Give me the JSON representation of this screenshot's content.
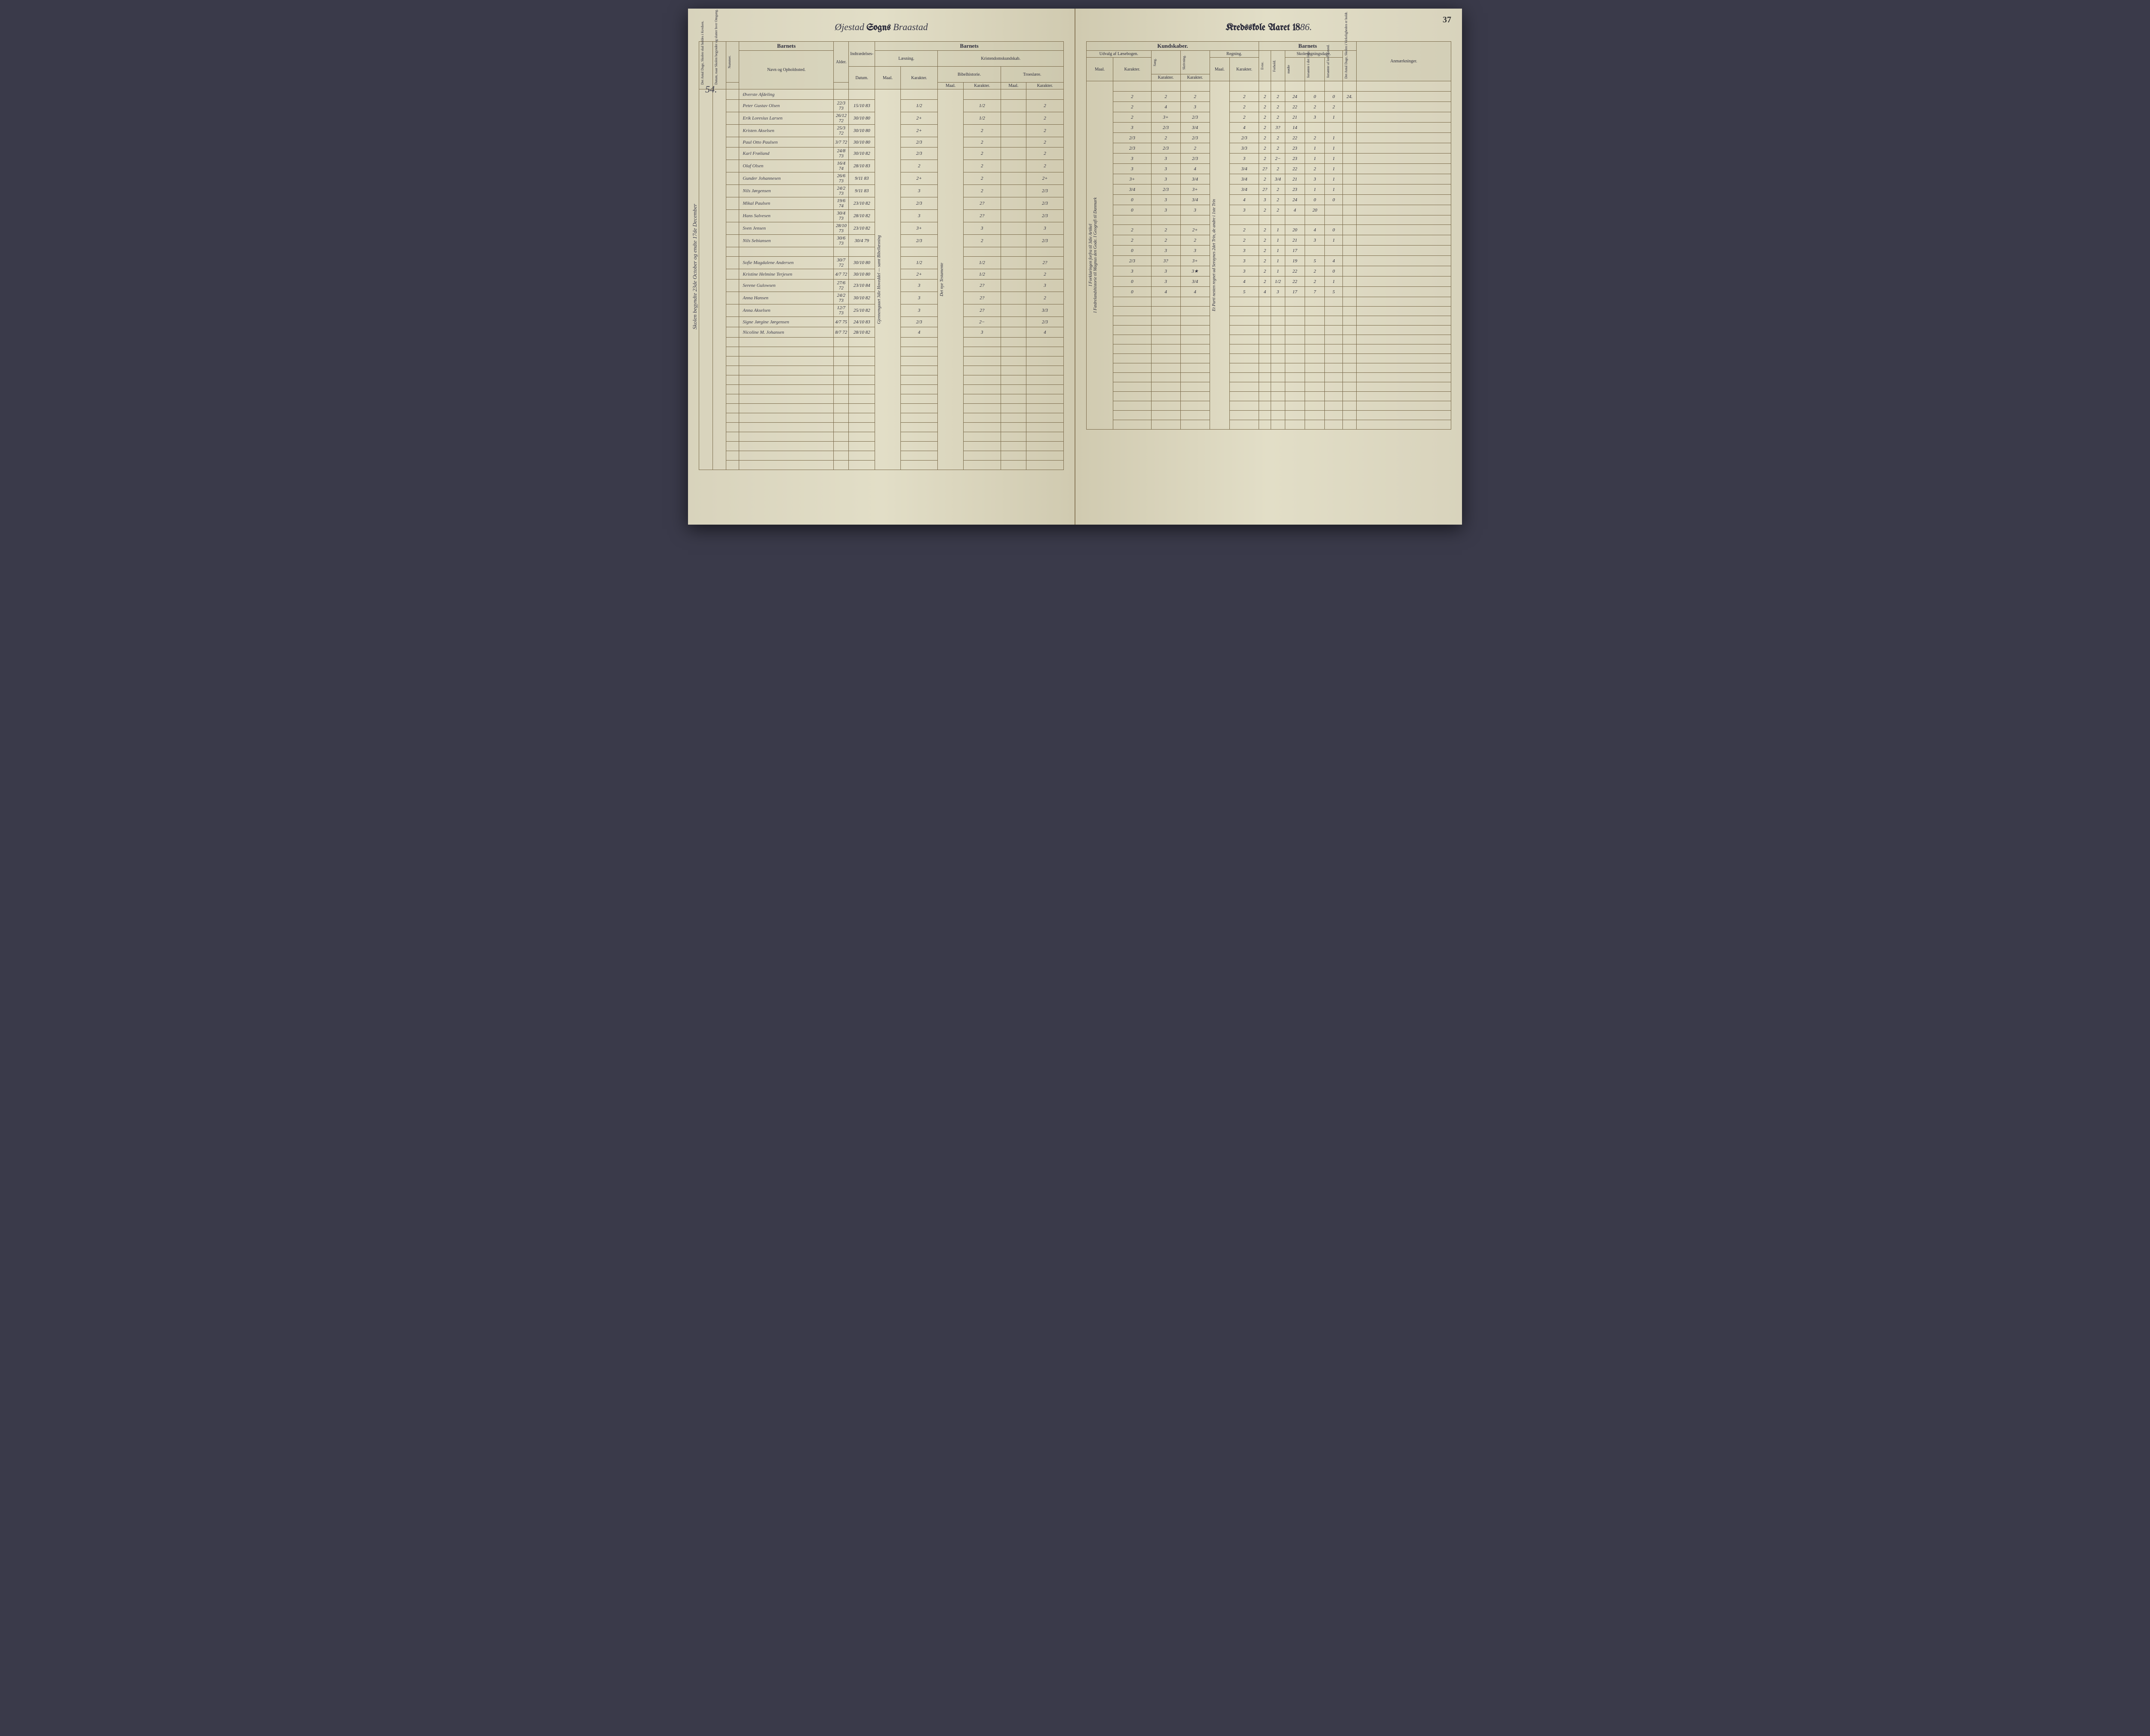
{
  "pageNumber": "37",
  "header": {
    "sogn_script": "Øjestad",
    "sogns": "Sogns",
    "kreds_script": "Braastad",
    "kredsskole": "Kredsskole Aaret 18",
    "year": "86."
  },
  "marginNote": "Skolen begyndte 23de October og endte 17de December",
  "rowNumber": "54.",
  "sectionTitle": "Øverste Afdeling",
  "columnGroups": {
    "left": {
      "barnets": "Barnets",
      "antal_dage": "Det Antal Dage, Skolen skal holdes i Kredsen.",
      "datum": "Datum, naar Skolen begynder og slutter hver Omgang.",
      "nummer": "Nummer.",
      "navn": "Navn og Opholdssted.",
      "alder": "Alder.",
      "indtrae": "Indtrædelses-",
      "indtrae_datum": "Datum.",
      "barnets2": "Barnets",
      "laesning": "Læsning.",
      "kristendom": "Kristendomskundskab.",
      "bibel": "Bibelhistorie.",
      "troes": "Troeslære.",
      "maal": "Maal.",
      "karakter": "Karakter."
    },
    "right": {
      "kundskaber": "Kundskaber.",
      "udvalg": "Udvalg af Læsebogen.",
      "sang": "Sang.",
      "skriv": "Skrivning.",
      "regning": "Regning.",
      "barnets3": "Barnets",
      "evne": "Evne.",
      "forhold": "Forhold.",
      "skolesog": "Skolesøgningsdage.",
      "modte": "mødte",
      "forsomt_hele": "forsømte i det Hele.",
      "forsomt_lov": "forsømte af lovl. Grund.",
      "antal_virk": "Det Antal Dage, Skolen i Virkeligheden er holdt.",
      "anmaerk": "Anmærkninger.",
      "maal": "Maal.",
      "karakter": "Karakter."
    }
  },
  "verticalNotes": {
    "col_bibel": "Gjennemgaaet 3die Hoveddel — samt Bibellæsning",
    "col_troes": "Det nye Testamente",
    "col_udvalg1": "I Forklaringen forfra til 3die Artikel",
    "col_udvalg2": "I Fædrelandshistorie til Magnus den Gode. I Geografi til Danmark",
    "col_regning": "Et Parti nesten regnet ud Seraynes 2det Trin, de andre i 1ste Trin"
  },
  "students": [
    {
      "name": "Peter Gustav Olsen",
      "alder": "22/3 73",
      "ind": "15/10 83",
      "l_m": "",
      "l_k": "1/2",
      "b_m": "",
      "b_k": "1/2",
      "t_m": "",
      "t_k": "2",
      "u_m": "",
      "u_k": "2",
      "sa": "2",
      "sk": "2",
      "r_m": "",
      "r_k": "2",
      "ev": "2",
      "fo": "2",
      "mo": "24",
      "fh": "0",
      "fl": "0",
      "ad": "24."
    },
    {
      "name": "Erik Loresius Larsen",
      "alder": "26/12 72",
      "ind": "30/10 80",
      "l_m": "",
      "l_k": "2+",
      "b_m": "",
      "b_k": "1/2",
      "t_m": "",
      "t_k": "2",
      "u_m": "",
      "u_k": "2",
      "sa": "4",
      "sk": "3",
      "r_m": "",
      "r_k": "2",
      "ev": "2",
      "fo": "2",
      "mo": "22",
      "fh": "2",
      "fl": "2",
      "ad": ""
    },
    {
      "name": "Kristen Akselsen",
      "alder": "25/3 72",
      "ind": "30/10 80",
      "l_m": "",
      "l_k": "2+",
      "b_m": "",
      "b_k": "2",
      "t_m": "",
      "t_k": "2",
      "u_m": "",
      "u_k": "2",
      "sa": "3+",
      "sk": "2/3",
      "r_m": "",
      "r_k": "2",
      "ev": "2",
      "fo": "2",
      "mo": "21",
      "fh": "3",
      "fl": "1",
      "ad": ""
    },
    {
      "name": "Paul Otto Paulsen",
      "alder": "3/7 72",
      "ind": "30/10 80",
      "l_m": "",
      "l_k": "2/3",
      "b_m": "",
      "b_k": "2",
      "t_m": "",
      "t_k": "2",
      "u_m": "",
      "u_k": "3",
      "sa": "2/3",
      "sk": "3/4",
      "r_m": "",
      "r_k": "4",
      "ev": "2",
      "fo": "3?",
      "mo": "14",
      "fh": "",
      "fl": "",
      "ad": ""
    },
    {
      "name": "Karl Frøiland",
      "alder": "24/8 73",
      "ind": "30/10 82",
      "l_m": "",
      "l_k": "2/3",
      "b_m": "",
      "b_k": "2",
      "t_m": "",
      "t_k": "2",
      "u_m": "",
      "u_k": "2/3",
      "sa": "2",
      "sk": "2/3",
      "r_m": "",
      "r_k": "2/3",
      "ev": "2",
      "fo": "2",
      "mo": "22",
      "fh": "2",
      "fl": "1",
      "ad": ""
    },
    {
      "name": "Olaf Olsen",
      "alder": "16/4 74",
      "ind": "28/10 83",
      "l_m": "",
      "l_k": "2",
      "b_m": "",
      "b_k": "2",
      "t_m": "",
      "t_k": "2",
      "u_m": "",
      "u_k": "2/3",
      "sa": "2/3",
      "sk": "2",
      "r_m": "",
      "r_k": "3/3",
      "ev": "2",
      "fo": "2",
      "mo": "23",
      "fh": "1",
      "fl": "1",
      "ad": ""
    },
    {
      "name": "Gunder Johannesen",
      "alder": "26/6 73",
      "ind": "9/11 83",
      "l_m": "",
      "l_k": "2+",
      "b_m": "",
      "b_k": "2",
      "t_m": "",
      "t_k": "2+",
      "u_m": "",
      "u_k": "3",
      "sa": "3",
      "sk": "2/3",
      "r_m": "",
      "r_k": "3",
      "ev": "2",
      "fo": "2−",
      "mo": "23",
      "fh": "1",
      "fl": "1",
      "ad": ""
    },
    {
      "name": "Nils Jørgensen",
      "alder": "24/2 73",
      "ind": "9/11 83",
      "l_m": "",
      "l_k": "3",
      "b_m": "",
      "b_k": "2",
      "t_m": "",
      "t_k": "2/3",
      "u_m": "",
      "u_k": "3",
      "sa": "3",
      "sk": "4",
      "r_m": "",
      "r_k": "3/4",
      "ev": "2?",
      "fo": "2",
      "mo": "22",
      "fh": "2",
      "fl": "1",
      "ad": ""
    },
    {
      "name": "Mikal Paulsen",
      "alder": "19/6 74",
      "ind": "23/10 82",
      "l_m": "",
      "l_k": "2/3",
      "b_m": "",
      "b_k": "2?",
      "t_m": "",
      "t_k": "2/3",
      "u_m": "",
      "u_k": "3+",
      "sa": "3",
      "sk": "3/4",
      "r_m": "",
      "r_k": "3/4",
      "ev": "2",
      "fo": "3/4",
      "mo": "21",
      "fh": "3",
      "fl": "1",
      "ad": ""
    },
    {
      "name": "Hans Salvesen",
      "alder": "30/4 73",
      "ind": "28/10 82",
      "l_m": "",
      "l_k": "3",
      "b_m": "",
      "b_k": "2?",
      "t_m": "",
      "t_k": "2/3",
      "u_m": "",
      "u_k": "3/4",
      "sa": "2/3",
      "sk": "3+",
      "r_m": "",
      "r_k": "3/4",
      "ev": "2?",
      "fo": "2",
      "mo": "23",
      "fh": "1",
      "fl": "1",
      "ad": ""
    },
    {
      "name": "Sven Jensen",
      "alder": "28/10 73",
      "ind": "23/10 82",
      "l_m": "",
      "l_k": "3+",
      "b_m": "",
      "b_k": "3",
      "t_m": "",
      "t_k": "3",
      "u_m": "",
      "u_k": "0",
      "sa": "3",
      "sk": "3/4",
      "r_m": "",
      "r_k": "4",
      "ev": "3",
      "fo": "2",
      "mo": "24",
      "fh": "0",
      "fl": "0",
      "ad": ""
    },
    {
      "name": "Nils Sebiansen",
      "alder": "30/6 73",
      "ind": "30/4 79",
      "l_m": "",
      "l_k": "2/3",
      "b_m": "",
      "b_k": "2",
      "t_m": "",
      "t_k": "2/3",
      "u_m": "",
      "u_k": "0",
      "sa": "3",
      "sk": "3",
      "r_m": "",
      "r_k": "3",
      "ev": "2",
      "fo": "2",
      "mo": "4",
      "fh": "20",
      "fl": "",
      "ad": ""
    },
    null,
    {
      "name": "Sofie Magdalene Andersen",
      "alder": "30/7 72",
      "ind": "30/10 80",
      "l_m": "",
      "l_k": "1/2",
      "b_m": "",
      "b_k": "1/2",
      "t_m": "",
      "t_k": "2?",
      "u_m": "",
      "u_k": "2",
      "sa": "2",
      "sk": "2+",
      "r_m": "",
      "r_k": "2",
      "ev": "2",
      "fo": "1",
      "mo": "20",
      "fh": "4",
      "fl": "0",
      "ad": ""
    },
    {
      "name": "Kristine Helmine Terjesen",
      "alder": "4/7 72",
      "ind": "30/10 80",
      "l_m": "",
      "l_k": "2+",
      "b_m": "",
      "b_k": "1/2",
      "t_m": "",
      "t_k": "2",
      "u_m": "",
      "u_k": "2",
      "sa": "2",
      "sk": "2",
      "r_m": "",
      "r_k": "2",
      "ev": "2",
      "fo": "1",
      "mo": "21",
      "fh": "3",
      "fl": "1",
      "ad": ""
    },
    {
      "name": "Serene Gulowsen",
      "alder": "27/6 72",
      "ind": "23/10 84",
      "l_m": "",
      "l_k": "3",
      "b_m": "",
      "b_k": "2?",
      "t_m": "",
      "t_k": "3",
      "u_m": "",
      "u_k": "0",
      "sa": "3",
      "sk": "3",
      "r_m": "",
      "r_k": "3",
      "ev": "2",
      "fo": "1",
      "mo": "17",
      "fh": "",
      "fl": "",
      "ad": ""
    },
    {
      "name": "Anna Hansen",
      "alder": "24/2 73",
      "ind": "30/10 82",
      "l_m": "",
      "l_k": "3",
      "b_m": "",
      "b_k": "2?",
      "t_m": "",
      "t_k": "2",
      "u_m": "",
      "u_k": "2/3",
      "sa": "3?",
      "sk": "3+",
      "r_m": "",
      "r_k": "3",
      "ev": "2",
      "fo": "1",
      "mo": "19",
      "fh": "5",
      "fl": "4",
      "ad": ""
    },
    {
      "name": "Anna Akselsen",
      "alder": "12/7 73",
      "ind": "25/10 82",
      "l_m": "",
      "l_k": "3",
      "b_m": "",
      "b_k": "2?",
      "t_m": "",
      "t_k": "3/3",
      "u_m": "",
      "u_k": "3",
      "sa": "3",
      "sk": "3★",
      "r_m": "",
      "r_k": "3",
      "ev": "2",
      "fo": "1",
      "mo": "22",
      "fh": "2",
      "fl": "0",
      "ad": ""
    },
    {
      "name": "Signe Jørgine Jørgensen",
      "alder": "4/7 75",
      "ind": "24/10 83",
      "l_m": "",
      "l_k": "2/3",
      "b_m": "",
      "b_k": "2−",
      "t_m": "",
      "t_k": "2/3",
      "u_m": "",
      "u_k": "0",
      "sa": "3",
      "sk": "3/4",
      "r_m": "",
      "r_k": "4",
      "ev": "2",
      "fo": "1/2",
      "mo": "22",
      "fh": "2",
      "fl": "1",
      "ad": ""
    },
    {
      "name": "Nicoline M. Johansen",
      "alder": "8/7 72",
      "ind": "28/10 82",
      "l_m": "",
      "l_k": "4",
      "b_m": "",
      "b_k": "3",
      "t_m": "",
      "t_k": "4",
      "u_m": "",
      "u_k": "0",
      "sa": "4",
      "sk": "4",
      "r_m": "",
      "r_k": "5",
      "ev": "4",
      "fo": "3",
      "mo": "17",
      "fh": "7",
      "fl": "5",
      "ad": ""
    }
  ],
  "emptyRows": 14
}
